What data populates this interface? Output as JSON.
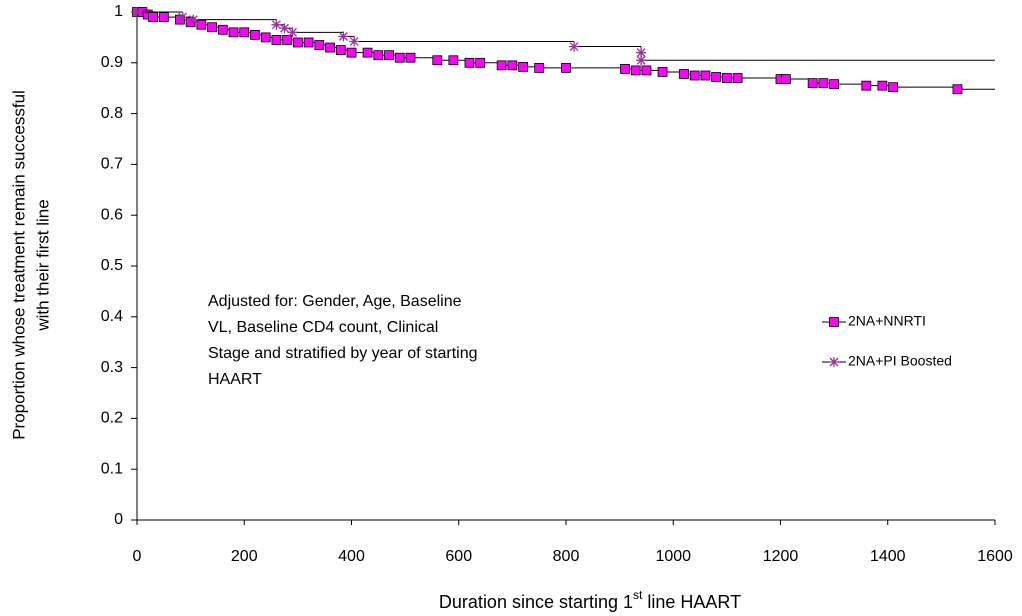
{
  "chart_data": {
    "type": "scatter",
    "xlabel_parts": [
      "Duration since starting 1",
      "st",
      " line HAART"
    ],
    "ylabel_lines": [
      "Proportion whose treatment remain successful",
      "with their first line"
    ],
    "annotation_lines": [
      "Adjusted for: Gender, Age, Baseline",
      "VL, Baseline CD4 count, Clinical",
      "Stage and stratified by year of starting",
      "HAART"
    ],
    "xlim": [
      0,
      1600
    ],
    "xticks": [
      0,
      200,
      400,
      600,
      800,
      1000,
      1200,
      1400,
      1600
    ],
    "ylim": [
      0,
      1
    ],
    "yticks": [
      0,
      0.1,
      0.2,
      0.3,
      0.4,
      0.5,
      0.6,
      0.7,
      0.8,
      0.9,
      1
    ],
    "legend": "right",
    "series": [
      {
        "name": "2NA+NNRTI",
        "color": "#ff00ff",
        "marker": "square",
        "x": [
          0,
          10,
          20,
          30,
          50,
          80,
          100,
          120,
          140,
          160,
          180,
          200,
          220,
          240,
          260,
          280,
          300,
          320,
          340,
          360,
          380,
          400,
          430,
          450,
          470,
          490,
          510,
          560,
          590,
          620,
          640,
          680,
          700,
          720,
          750,
          800,
          910,
          930,
          950,
          980,
          1020,
          1040,
          1060,
          1080,
          1100,
          1120,
          1200,
          1210,
          1260,
          1280,
          1300,
          1360,
          1390,
          1410,
          1530
        ],
        "values": [
          1.0,
          1.0,
          0.995,
          0.99,
          0.99,
          0.985,
          0.98,
          0.975,
          0.97,
          0.965,
          0.96,
          0.96,
          0.955,
          0.95,
          0.945,
          0.945,
          0.94,
          0.94,
          0.935,
          0.93,
          0.925,
          0.92,
          0.92,
          0.915,
          0.915,
          0.91,
          0.91,
          0.905,
          0.905,
          0.9,
          0.9,
          0.895,
          0.895,
          0.892,
          0.89,
          0.89,
          0.888,
          0.885,
          0.885,
          0.882,
          0.878,
          0.875,
          0.875,
          0.872,
          0.87,
          0.87,
          0.868,
          0.868,
          0.86,
          0.86,
          0.858,
          0.855,
          0.855,
          0.852,
          0.848
        ]
      },
      {
        "name": "2NA+PI Boosted",
        "color": "#993399",
        "marker": "star",
        "x": [
          0,
          85,
          105,
          260,
          275,
          290,
          385,
          405,
          815,
          940,
          940
        ],
        "values": [
          1.0,
          0.99,
          0.985,
          0.975,
          0.968,
          0.96,
          0.952,
          0.942,
          0.932,
          0.92,
          0.905
        ]
      }
    ]
  }
}
